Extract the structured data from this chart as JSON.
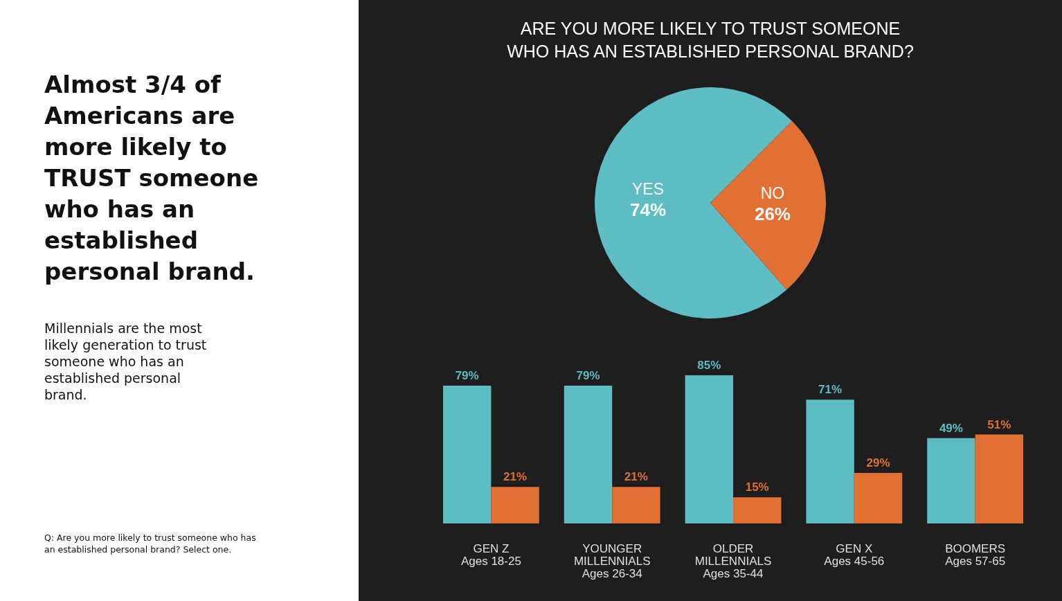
{
  "chart_data": [
    {
      "type": "other",
      "title": "Almost 3/4 of Americans are more likely to TRUST someone who has an established personal brand.",
      "subtitle": "Millennials are the most likely generation to trust someone who has an established personal brand.",
      "annotations": [
        "Q: Are you more likely to trust someone who has an established personal brand? Select one."
      ]
    },
    {
      "type": "pie",
      "title": "ARE YOU MORE LIKELY TO TRUST SOMEONE WHO HAS AN ESTABLISHED PERSONAL BRAND?",
      "categories": [
        "YES",
        "NO"
      ],
      "values": [
        74,
        26
      ],
      "colors": [
        "#5ebcc4",
        "#e07033"
      ],
      "value_labels": [
        "74%",
        "26%"
      ]
    },
    {
      "type": "bar",
      "categories": [
        "GEN Z\nAges 18-25",
        "YOUNGER\nMILLENNIALS\nAges 26-34",
        "OLDER\nMILLENNIALS\nAges 35-44",
        "GEN X\nAges 45-56",
        "BOOMERS\nAges 57-65"
      ],
      "series": [
        {
          "color": "#5ebcc4",
          "values": [
            79,
            79,
            85,
            71,
            49
          ],
          "value_labels": [
            "79%",
            "79%",
            "85%",
            "71%",
            "49%"
          ]
        },
        {
          "color": "#e07033",
          "values": [
            21,
            21,
            15,
            29,
            51
          ],
          "value_labels": [
            "21%",
            "21%",
            "15%",
            "29%",
            "51%"
          ]
        }
      ]
    }
  ]
}
